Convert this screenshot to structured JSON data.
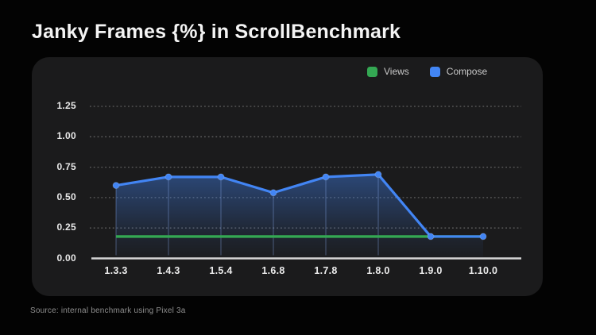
{
  "page": {
    "title": "Janky Frames {%} in ScrollBenchmark",
    "source": "Source: internal benchmark using Pixel 3a"
  },
  "colors": {
    "background": "#030303",
    "card": "#1b1b1c",
    "views_green": "#34A853",
    "compose_blue": "#4285F4",
    "axis_line": "#d6d6d6",
    "gridline": "#606060"
  },
  "chart_data": {
    "type": "line",
    "title": "Janky Frames {%} in ScrollBenchmark",
    "xlabel": "",
    "ylabel": "",
    "categories": [
      "1.3.3",
      "1.4.3",
      "1.5.4",
      "1.6.8",
      "1.7.8",
      "1.8.0",
      "1.9.0",
      "1.10.0"
    ],
    "series": [
      {
        "name": "Views",
        "color": "#34A853",
        "values": [
          0.18,
          0.18,
          0.18,
          0.18,
          0.18,
          0.18,
          0.18,
          0.18
        ]
      },
      {
        "name": "Compose",
        "color": "#4285F4",
        "values": [
          0.6,
          0.67,
          0.67,
          0.54,
          0.67,
          0.69,
          0.18,
          0.18
        ]
      }
    ],
    "yticks": [
      "0.00",
      "0.25",
      "0.50",
      "0.75",
      "1.00",
      "1.25"
    ],
    "ylim": [
      0,
      1.35
    ],
    "grid": "horizontal-dotted",
    "legend_position": "top-right",
    "area_fill_under_compose": true
  }
}
